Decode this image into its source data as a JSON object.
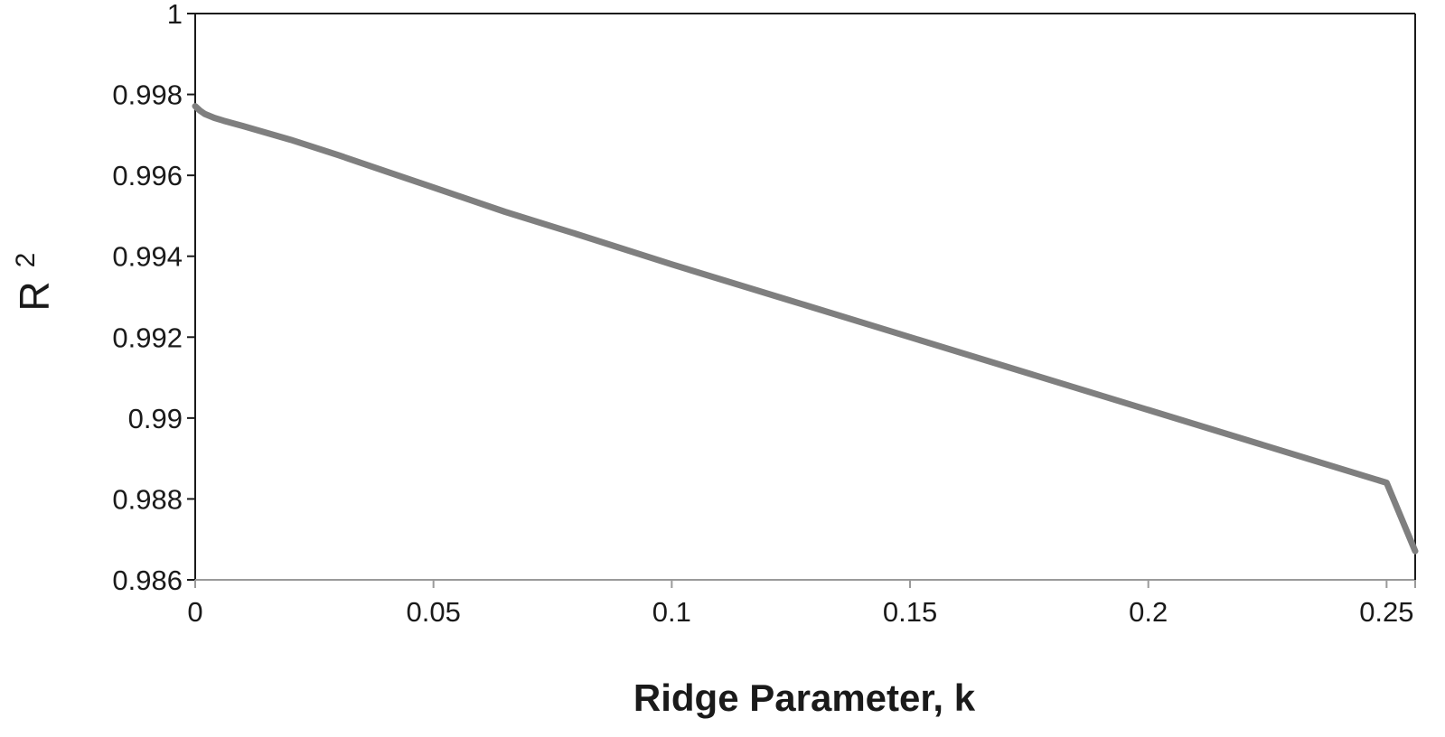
{
  "chart_data": {
    "type": "line",
    "xlabel": "Ridge Parameter, k",
    "ylabel": "R",
    "ylabel_superscript": "2",
    "xlim": [
      0,
      0.256
    ],
    "ylim": [
      0.986,
      1
    ],
    "x_ticks": [
      "0",
      "0.05",
      "0.1",
      "0.15",
      "0.2",
      "0.25"
    ],
    "x_tick_values": [
      0,
      0.05,
      0.1,
      0.15,
      0.2,
      0.25
    ],
    "y_ticks": [
      "0.986",
      "0.988",
      "0.99",
      "0.992",
      "0.994",
      "0.996",
      "0.998",
      "1"
    ],
    "y_tick_values": [
      0.986,
      0.988,
      0.99,
      0.992,
      0.994,
      0.996,
      0.998,
      1
    ],
    "grid": false,
    "legend": "none",
    "series": [
      {
        "color": "#7f7f7f",
        "x": [
          0,
          0.001,
          0.002,
          0.004,
          0.006,
          0.01,
          0.015,
          0.02,
          0.03,
          0.04,
          0.05,
          0.065,
          0.08,
          0.1,
          0.125,
          0.15,
          0.175,
          0.2,
          0.225,
          0.25,
          0.256
        ],
        "y": [
          0.99771,
          0.9976,
          0.99752,
          0.99742,
          0.99735,
          0.99722,
          0.99705,
          0.99688,
          0.9965,
          0.9961,
          0.9957,
          0.9951,
          0.99455,
          0.9938,
          0.9929,
          0.992,
          0.9911,
          0.9902,
          0.9893,
          0.9884,
          0.98671
        ]
      }
    ]
  }
}
